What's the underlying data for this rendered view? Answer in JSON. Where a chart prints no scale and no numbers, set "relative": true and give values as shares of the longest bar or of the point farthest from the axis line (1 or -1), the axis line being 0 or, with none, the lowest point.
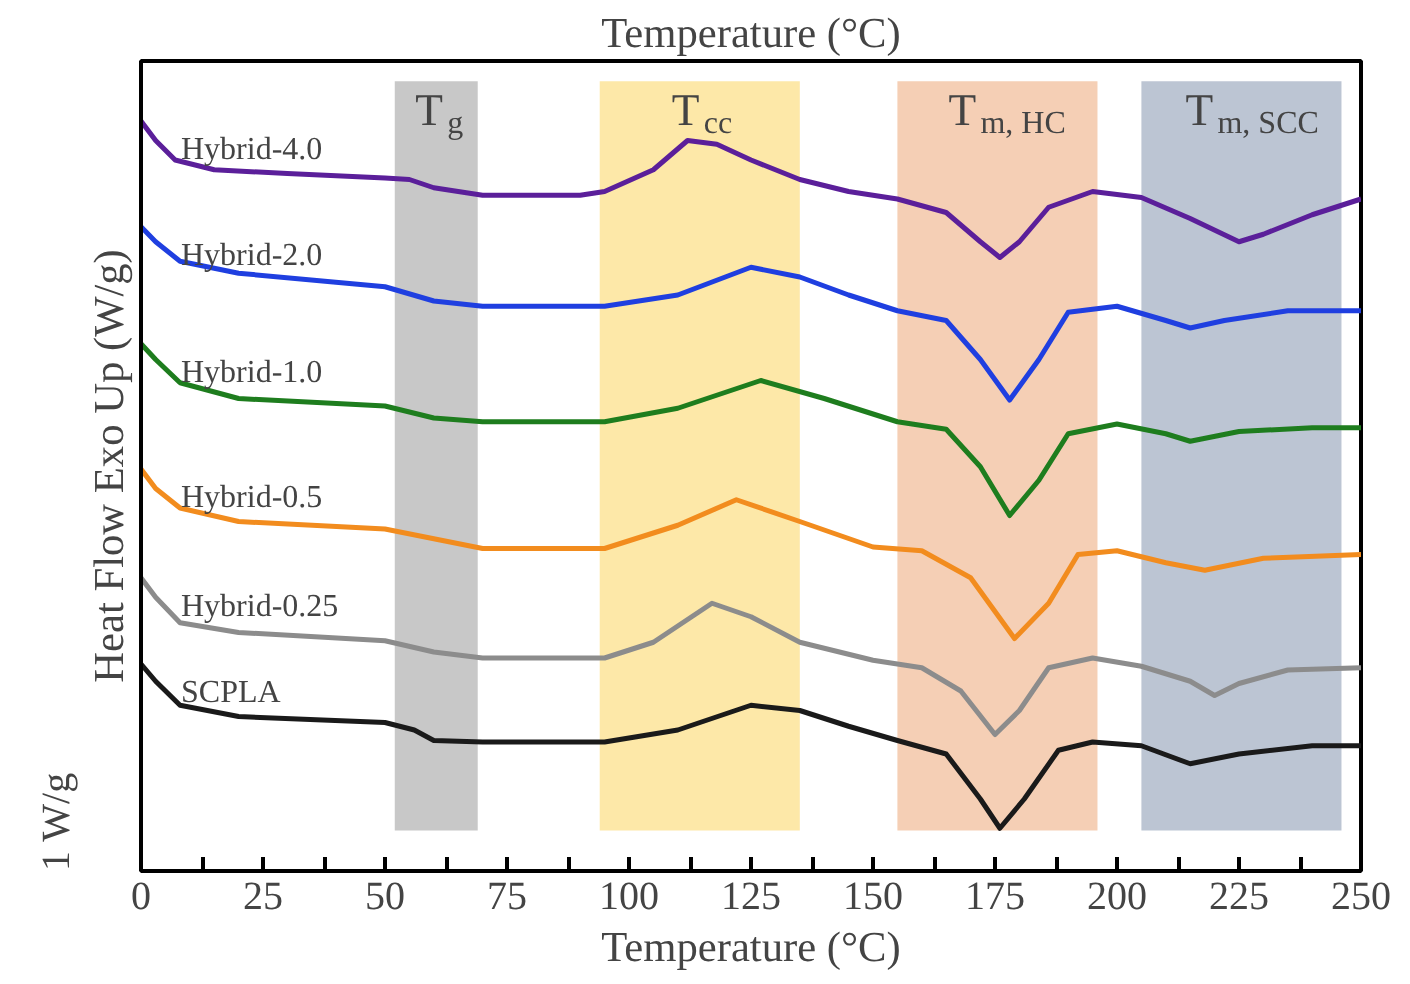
{
  "chart_data": {
    "type": "line",
    "relative": true,
    "xlabel": "Temperature (°C)",
    "x2label": "Temperature (°C)",
    "ylabel": "Heat Flow Exo Up (W/g)",
    "xlim": [
      0,
      250
    ],
    "xticks": [
      0,
      {
        "value": 12.5,
        "label": null
      },
      25,
      {
        "value": 37.5,
        "label": null
      },
      50,
      {
        "value": 62.5,
        "label": null
      },
      75,
      {
        "value": 87.5,
        "label": null
      },
      100,
      {
        "value": 112.5,
        "label": null
      },
      125,
      {
        "value": 137.5,
        "label": null
      },
      150,
      {
        "value": 162.5,
        "label": null
      },
      175,
      {
        "value": 187.5,
        "label": null
      },
      200,
      {
        "value": 212.5,
        "label": null
      },
      225,
      {
        "value": 237.5,
        "label": null
      },
      250
    ],
    "tick_labels": "x",
    "grid": false,
    "legend": false,
    "marker": "none",
    "line_style": "solid",
    "annotations": [
      "1 W/g"
    ],
    "bands": [
      {
        "axis": "x",
        "from": 52,
        "to": 69,
        "label": "T$_{g}$",
        "color": "#c8c8c8"
      },
      {
        "axis": "x",
        "from": 94,
        "to": 135,
        "label": "T$_{cc}$",
        "color": "#fde8a8"
      },
      {
        "axis": "x",
        "from": 155,
        "to": 196,
        "label": "T$_{m, HC}$",
        "color": "#f5cfb5"
      },
      {
        "axis": "x",
        "from": 205,
        "to": 246,
        "label": "T$_{m, SCC}$",
        "color": "#bcc5d3"
      }
    ],
    "series": [
      {
        "name": "Hybrid-4.0",
        "color": "#5b1f9a",
        "x": [
          0,
          3,
          7,
          15,
          30,
          50,
          55,
          60,
          70,
          90,
          95,
          105,
          112,
          118,
          125,
          135,
          145,
          155,
          165,
          172,
          176,
          180,
          186,
          195,
          205,
          215,
          225,
          230,
          240,
          250
        ],
        "values": [
          1.0,
          0.974,
          0.948,
          0.935,
          0.93,
          0.924,
          0.922,
          0.911,
          0.901,
          0.901,
          0.906,
          0.935,
          0.974,
          0.969,
          0.948,
          0.922,
          0.906,
          0.896,
          0.878,
          0.839,
          0.818,
          0.839,
          0.885,
          0.906,
          0.898,
          0.87,
          0.839,
          0.849,
          0.875,
          0.896
        ]
      },
      {
        "name": "Hybrid-2.0",
        "color": "#1f3fe0",
        "x": [
          0,
          3,
          8,
          20,
          50,
          60,
          70,
          95,
          110,
          125,
          135,
          145,
          155,
          165,
          172,
          178,
          184,
          190,
          200,
          210,
          215,
          222,
          235,
          250
        ],
        "values": [
          0.859,
          0.839,
          0.813,
          0.797,
          0.779,
          0.76,
          0.753,
          0.753,
          0.768,
          0.805,
          0.792,
          0.768,
          0.747,
          0.734,
          0.682,
          0.628,
          0.682,
          0.745,
          0.753,
          0.734,
          0.724,
          0.734,
          0.747,
          0.747
        ]
      },
      {
        "name": "Hybrid-1.0",
        "color": "#1e7d1e",
        "x": [
          0,
          3,
          8,
          20,
          50,
          60,
          70,
          95,
          110,
          127,
          140,
          155,
          165,
          172,
          178,
          184,
          190,
          200,
          210,
          215,
          225,
          240,
          250
        ],
        "values": [
          0.703,
          0.682,
          0.651,
          0.63,
          0.62,
          0.604,
          0.599,
          0.599,
          0.617,
          0.654,
          0.63,
          0.599,
          0.589,
          0.539,
          0.474,
          0.521,
          0.583,
          0.596,
          0.583,
          0.573,
          0.586,
          0.591,
          0.591
        ]
      },
      {
        "name": "Hybrid-0.5",
        "color": "#f28c1e",
        "x": [
          0,
          3,
          8,
          20,
          50,
          60,
          70,
          95,
          110,
          122,
          135,
          150,
          160,
          170,
          179,
          186,
          192,
          200,
          210,
          218,
          230,
          250
        ],
        "values": [
          0.536,
          0.51,
          0.484,
          0.466,
          0.456,
          0.443,
          0.43,
          0.43,
          0.461,
          0.495,
          0.466,
          0.432,
          0.427,
          0.391,
          0.31,
          0.357,
          0.422,
          0.427,
          0.411,
          0.401,
          0.417,
          0.422
        ]
      },
      {
        "name": "Hybrid-0.25",
        "color": "#8c8c8c",
        "x": [
          0,
          3,
          8,
          20,
          50,
          60,
          70,
          95,
          105,
          117,
          125,
          135,
          150,
          160,
          168,
          175,
          180,
          186,
          195,
          205,
          215,
          220,
          225,
          235,
          250
        ],
        "values": [
          0.391,
          0.365,
          0.331,
          0.318,
          0.307,
          0.292,
          0.284,
          0.284,
          0.305,
          0.357,
          0.339,
          0.305,
          0.281,
          0.271,
          0.24,
          0.182,
          0.214,
          0.271,
          0.284,
          0.273,
          0.253,
          0.234,
          0.25,
          0.268,
          0.271
        ]
      },
      {
        "name": "SCPLA",
        "color": "#1a1a1a",
        "x": [
          0,
          3,
          8,
          20,
          50,
          56,
          60,
          70,
          95,
          110,
          125,
          135,
          145,
          155,
          165,
          172,
          176,
          181,
          188,
          195,
          205,
          215,
          225,
          240,
          250
        ],
        "values": [
          0.276,
          0.253,
          0.221,
          0.206,
          0.198,
          0.188,
          0.174,
          0.172,
          0.172,
          0.188,
          0.221,
          0.214,
          0.193,
          0.174,
          0.156,
          0.096,
          0.057,
          0.096,
          0.161,
          0.172,
          0.167,
          0.143,
          0.156,
          0.167,
          0.167
        ]
      }
    ]
  }
}
